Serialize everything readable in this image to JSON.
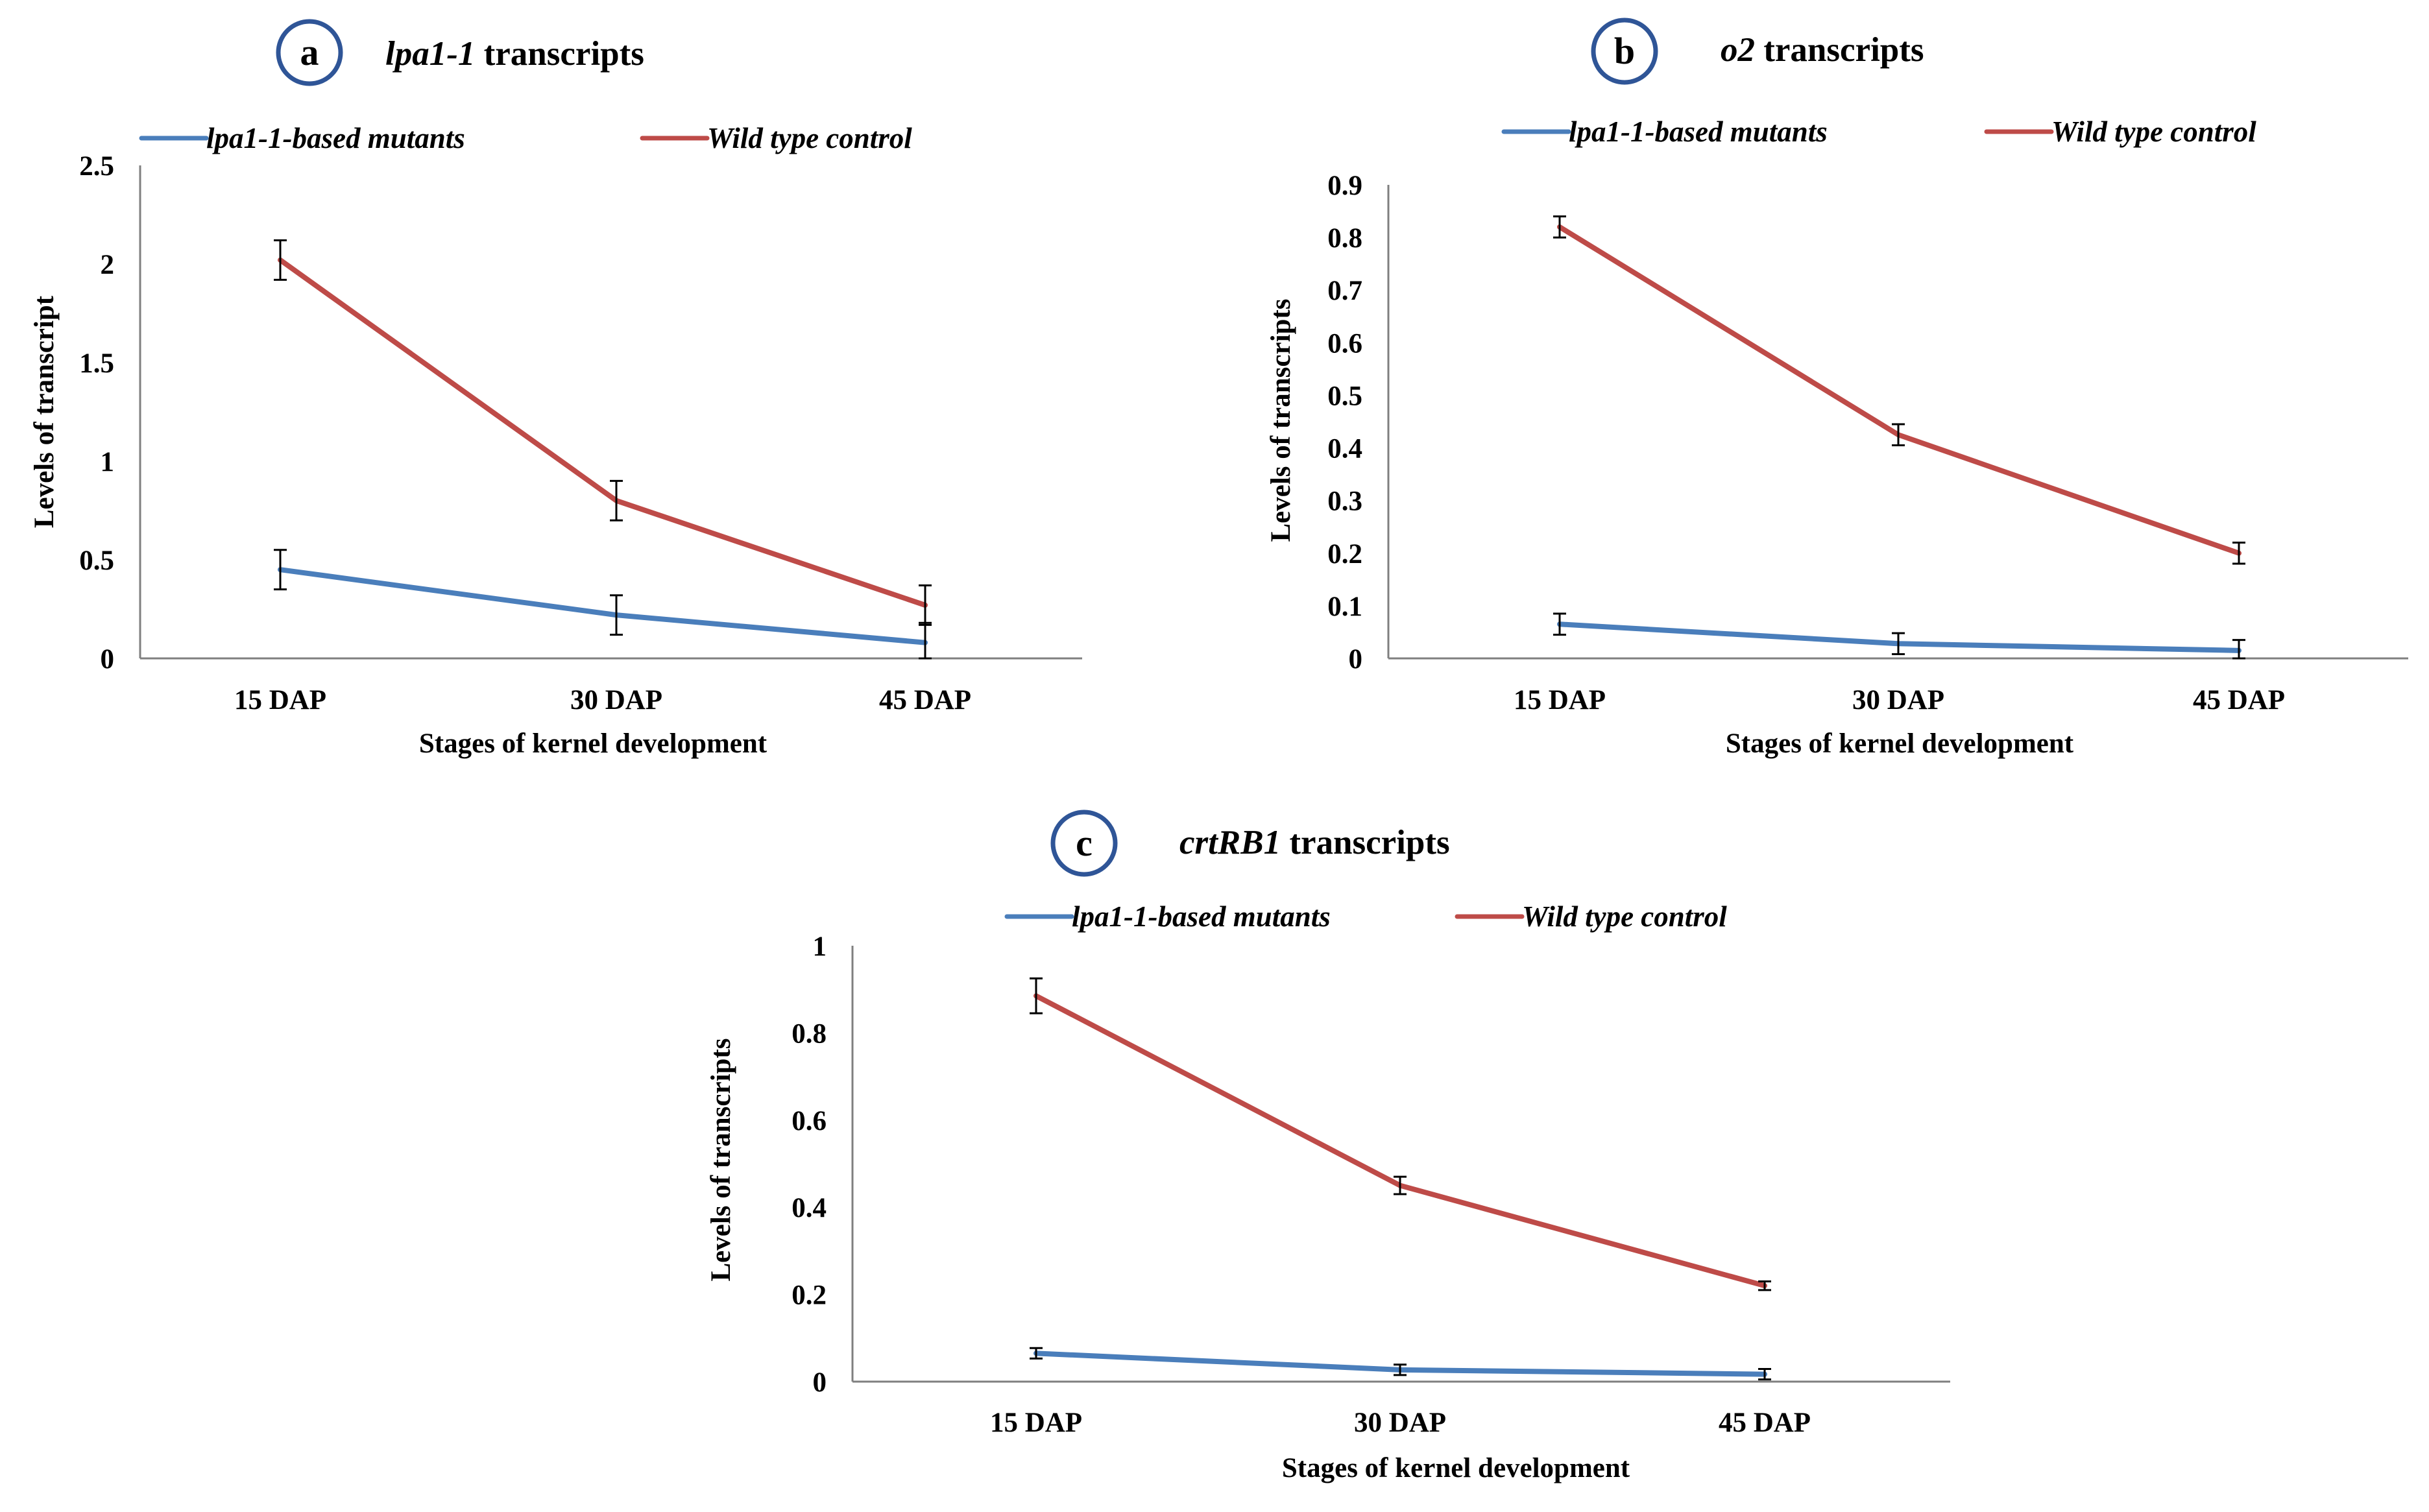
{
  "chart_data": [
    {
      "type": "line",
      "panel_letter": "a",
      "title_italic": "lpa1-1",
      "title_rest": " transcripts",
      "categories": [
        "15 DAP",
        "30 DAP",
        "45 DAP"
      ],
      "xlabel": "Stages of kernel development",
      "ylabel": "Levels of transcript",
      "ylim": [
        0,
        2.5
      ],
      "yticks": [
        "0",
        "0.5",
        "1",
        "1.5",
        "2",
        "2.5"
      ],
      "ytick_values": [
        0,
        0.5,
        1,
        1.5,
        2,
        2.5
      ],
      "legend_position": "top",
      "series": [
        {
          "name": "lpa1-1-based mutants",
          "color": "#4a7ebb",
          "values": [
            0.45,
            0.22,
            0.08
          ],
          "errors": [
            0.1,
            0.1,
            0.1
          ]
        },
        {
          "name": "Wild type control",
          "color": "#be4b48",
          "values": [
            2.02,
            0.8,
            0.27
          ],
          "errors": [
            0.1,
            0.1,
            0.1
          ]
        }
      ]
    },
    {
      "type": "line",
      "panel_letter": "b",
      "title_italic": "o2",
      "title_rest": " transcripts",
      "categories": [
        "15 DAP",
        "30 DAP",
        "45 DAP"
      ],
      "xlabel": "Stages of kernel development",
      "ylabel": "Levels of transcripts",
      "ylim": [
        0,
        0.9
      ],
      "yticks": [
        "0",
        "0.1",
        "0.2",
        "0.3",
        "0.4",
        "0.5",
        "0.6",
        "0.7",
        "0.8",
        "0.9"
      ],
      "ytick_values": [
        0,
        0.1,
        0.2,
        0.3,
        0.4,
        0.5,
        0.6,
        0.7,
        0.8,
        0.9
      ],
      "legend_position": "top",
      "series": [
        {
          "name": "lpa1-1-based mutants",
          "color": "#4a7ebb",
          "values": [
            0.065,
            0.028,
            0.015
          ],
          "errors": [
            0.02,
            0.02,
            0.02
          ]
        },
        {
          "name": "Wild type control",
          "color": "#be4b48",
          "values": [
            0.82,
            0.425,
            0.2
          ],
          "errors": [
            0.02,
            0.02,
            0.02
          ]
        }
      ]
    },
    {
      "type": "line",
      "panel_letter": "c",
      "title_italic": "crtRB1",
      "title_rest": " transcripts",
      "categories": [
        "15 DAP",
        "30 DAP",
        "45 DAP"
      ],
      "xlabel": "Stages of kernel development",
      "ylabel": "Levels of transcripts",
      "ylim": [
        0,
        1
      ],
      "yticks": [
        "0",
        "0.2",
        "0.4",
        "0.6",
        "0.8",
        "1"
      ],
      "ytick_values": [
        0,
        0.2,
        0.4,
        0.6,
        0.8,
        1
      ],
      "legend_position": "top",
      "series": [
        {
          "name": "lpa1-1-based mutants",
          "color": "#4a7ebb",
          "values": [
            0.065,
            0.027,
            0.017
          ],
          "errors": [
            0.012,
            0.012,
            0.012
          ]
        },
        {
          "name": "Wild type control",
          "color": "#be4b48",
          "values": [
            0.885,
            0.45,
            0.22
          ],
          "errors": [
            0.04,
            0.02,
            0.01
          ]
        }
      ]
    }
  ],
  "styles": {
    "axis_color": "#7f7f7f",
    "badge_stroke": "#2f5597",
    "error_color": "#000000"
  }
}
